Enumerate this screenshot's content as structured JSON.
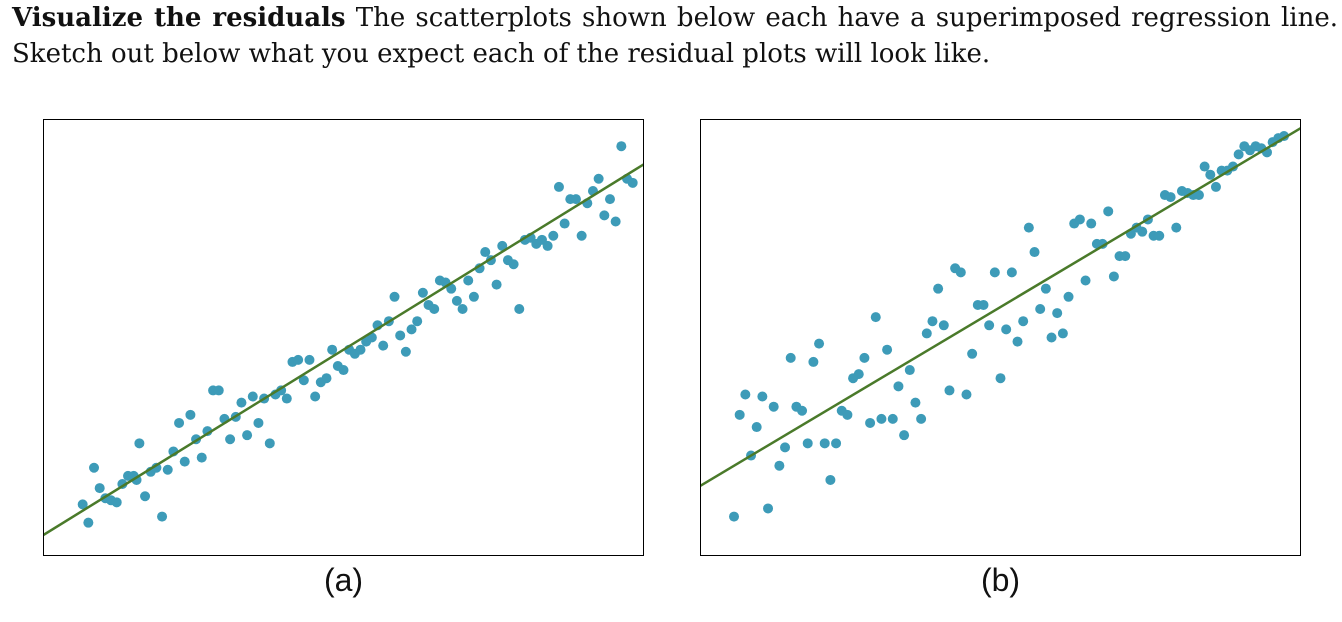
{
  "prompt": {
    "bold_lead": "Visualize the residuals",
    "text": " The scatterplots shown below each have a superimposed regression line. Sketch out below what you expect each of the residual plots will look like."
  },
  "colors": {
    "points": "#3d9bb8",
    "line": "#4a7a2a"
  },
  "chart_data": [
    {
      "type": "scatter",
      "caption": "(a)",
      "xlabel": "",
      "ylabel": "",
      "xlim": [
        0,
        100
      ],
      "ylim": [
        0,
        100
      ],
      "grid": false,
      "regression_line": {
        "intercept": 4,
        "slope": 0.86
      },
      "points": [
        [
          4,
          9
        ],
        [
          5,
          4.5
        ],
        [
          6,
          18
        ],
        [
          7,
          13
        ],
        [
          8,
          10.5
        ],
        [
          9,
          10
        ],
        [
          10,
          9.5
        ],
        [
          11,
          14
        ],
        [
          12,
          16
        ],
        [
          13,
          16
        ],
        [
          13.5,
          15
        ],
        [
          14,
          24
        ],
        [
          15,
          11
        ],
        [
          16,
          17
        ],
        [
          17,
          18
        ],
        [
          18,
          6
        ],
        [
          19,
          17.5
        ],
        [
          20,
          22
        ],
        [
          21,
          29
        ],
        [
          22,
          19.5
        ],
        [
          23,
          31
        ],
        [
          24,
          25
        ],
        [
          25,
          20.5
        ],
        [
          26,
          27
        ],
        [
          27,
          37
        ],
        [
          28,
          37
        ],
        [
          29,
          30
        ],
        [
          30,
          25
        ],
        [
          31,
          30.5
        ],
        [
          32,
          34
        ],
        [
          33,
          26
        ],
        [
          34,
          35.5
        ],
        [
          35,
          29
        ],
        [
          36,
          35
        ],
        [
          37,
          24
        ],
        [
          38,
          36
        ],
        [
          39,
          37
        ],
        [
          40,
          35
        ],
        [
          41,
          44
        ],
        [
          42,
          44.5
        ],
        [
          43,
          39.5
        ],
        [
          44,
          44.5
        ],
        [
          45,
          35.5
        ],
        [
          46,
          39
        ],
        [
          47,
          40
        ],
        [
          48,
          47
        ],
        [
          49,
          43
        ],
        [
          50,
          42
        ],
        [
          51,
          47
        ],
        [
          52,
          46
        ],
        [
          53,
          47
        ],
        [
          54,
          49
        ],
        [
          55,
          50
        ],
        [
          56,
          53
        ],
        [
          57,
          48
        ],
        [
          58,
          54
        ],
        [
          59,
          60
        ],
        [
          60,
          50.5
        ],
        [
          61,
          46.5
        ],
        [
          62,
          52
        ],
        [
          63,
          54
        ],
        [
          64,
          61
        ],
        [
          65,
          58
        ],
        [
          66,
          57
        ],
        [
          67,
          64
        ],
        [
          68,
          63.5
        ],
        [
          69,
          62
        ],
        [
          70,
          59
        ],
        [
          71,
          57
        ],
        [
          72,
          64
        ],
        [
          73,
          60
        ],
        [
          74,
          67
        ],
        [
          75,
          71
        ],
        [
          76,
          69
        ],
        [
          77,
          63
        ],
        [
          78,
          72.5
        ],
        [
          79,
          69
        ],
        [
          80,
          68
        ],
        [
          81,
          57
        ],
        [
          82,
          74
        ],
        [
          83,
          74.5
        ],
        [
          84,
          73
        ],
        [
          85,
          74
        ],
        [
          86,
          72.5
        ],
        [
          87,
          75
        ],
        [
          88,
          87
        ],
        [
          89,
          78
        ],
        [
          90,
          84
        ],
        [
          91,
          84
        ],
        [
          92,
          75
        ],
        [
          93,
          83
        ],
        [
          94,
          86
        ],
        [
          95,
          89
        ],
        [
          96,
          80
        ],
        [
          97,
          84
        ],
        [
          98,
          78.5
        ],
        [
          99,
          97
        ],
        [
          100,
          89
        ],
        [
          101,
          88
        ]
      ]
    },
    {
      "type": "scatter",
      "caption": "(b)",
      "xlabel": "",
      "ylabel": "",
      "xlim": [
        0,
        100
      ],
      "ylim": [
        0,
        100
      ],
      "grid": false,
      "regression_line": {
        "intercept": 16,
        "slope": 0.83
      },
      "points": [
        [
          3,
          6
        ],
        [
          4,
          31
        ],
        [
          5,
          36
        ],
        [
          6,
          21
        ],
        [
          7,
          28
        ],
        [
          8,
          35.5
        ],
        [
          9,
          8
        ],
        [
          10,
          33
        ],
        [
          11,
          18.5
        ],
        [
          12,
          23
        ],
        [
          13,
          45
        ],
        [
          14,
          33
        ],
        [
          15,
          32
        ],
        [
          16,
          24
        ],
        [
          17,
          44
        ],
        [
          18,
          48.5
        ],
        [
          19,
          24
        ],
        [
          20,
          15
        ],
        [
          21,
          24
        ],
        [
          22,
          32
        ],
        [
          23,
          31
        ],
        [
          24,
          40
        ],
        [
          25,
          41
        ],
        [
          26,
          45
        ],
        [
          27,
          29
        ],
        [
          28,
          55
        ],
        [
          29,
          30
        ],
        [
          30,
          47
        ],
        [
          31,
          30
        ],
        [
          32,
          38
        ],
        [
          33,
          26
        ],
        [
          34,
          42
        ],
        [
          35,
          34
        ],
        [
          36,
          30
        ],
        [
          37,
          51
        ],
        [
          38,
          54
        ],
        [
          39,
          62
        ],
        [
          40,
          53
        ],
        [
          41,
          37
        ],
        [
          42,
          67
        ],
        [
          43,
          66
        ],
        [
          44,
          36
        ],
        [
          45,
          46
        ],
        [
          46,
          58
        ],
        [
          47,
          58
        ],
        [
          48,
          53
        ],
        [
          49,
          66
        ],
        [
          50,
          40
        ],
        [
          51,
          52
        ],
        [
          52,
          66
        ],
        [
          53,
          49
        ],
        [
          54,
          54
        ],
        [
          55,
          77
        ],
        [
          56,
          71
        ],
        [
          57,
          57
        ],
        [
          58,
          62
        ],
        [
          59,
          50
        ],
        [
          60,
          56
        ],
        [
          61,
          51
        ],
        [
          62,
          60
        ],
        [
          63,
          78
        ],
        [
          64,
          79
        ],
        [
          65,
          64
        ],
        [
          66,
          78
        ],
        [
          67,
          73
        ],
        [
          68,
          73
        ],
        [
          69,
          81
        ],
        [
          70,
          65
        ],
        [
          71,
          70
        ],
        [
          72,
          70
        ],
        [
          73,
          75.5
        ],
        [
          74,
          77
        ],
        [
          75,
          76
        ],
        [
          76,
          79
        ],
        [
          77,
          75
        ],
        [
          78,
          75
        ],
        [
          79,
          85
        ],
        [
          80,
          84.5
        ],
        [
          81,
          77
        ],
        [
          82,
          86
        ],
        [
          83,
          85.5
        ],
        [
          84,
          85
        ],
        [
          85,
          85
        ],
        [
          86,
          92
        ],
        [
          87,
          90
        ],
        [
          88,
          87
        ],
        [
          89,
          91
        ],
        [
          90,
          91
        ],
        [
          91,
          92
        ],
        [
          92,
          95
        ],
        [
          93,
          97
        ],
        [
          94,
          96
        ],
        [
          95,
          97
        ],
        [
          96,
          96.5
        ],
        [
          97,
          95.5
        ],
        [
          98,
          98
        ],
        [
          99,
          99
        ],
        [
          100,
          99.5
        ]
      ]
    }
  ]
}
